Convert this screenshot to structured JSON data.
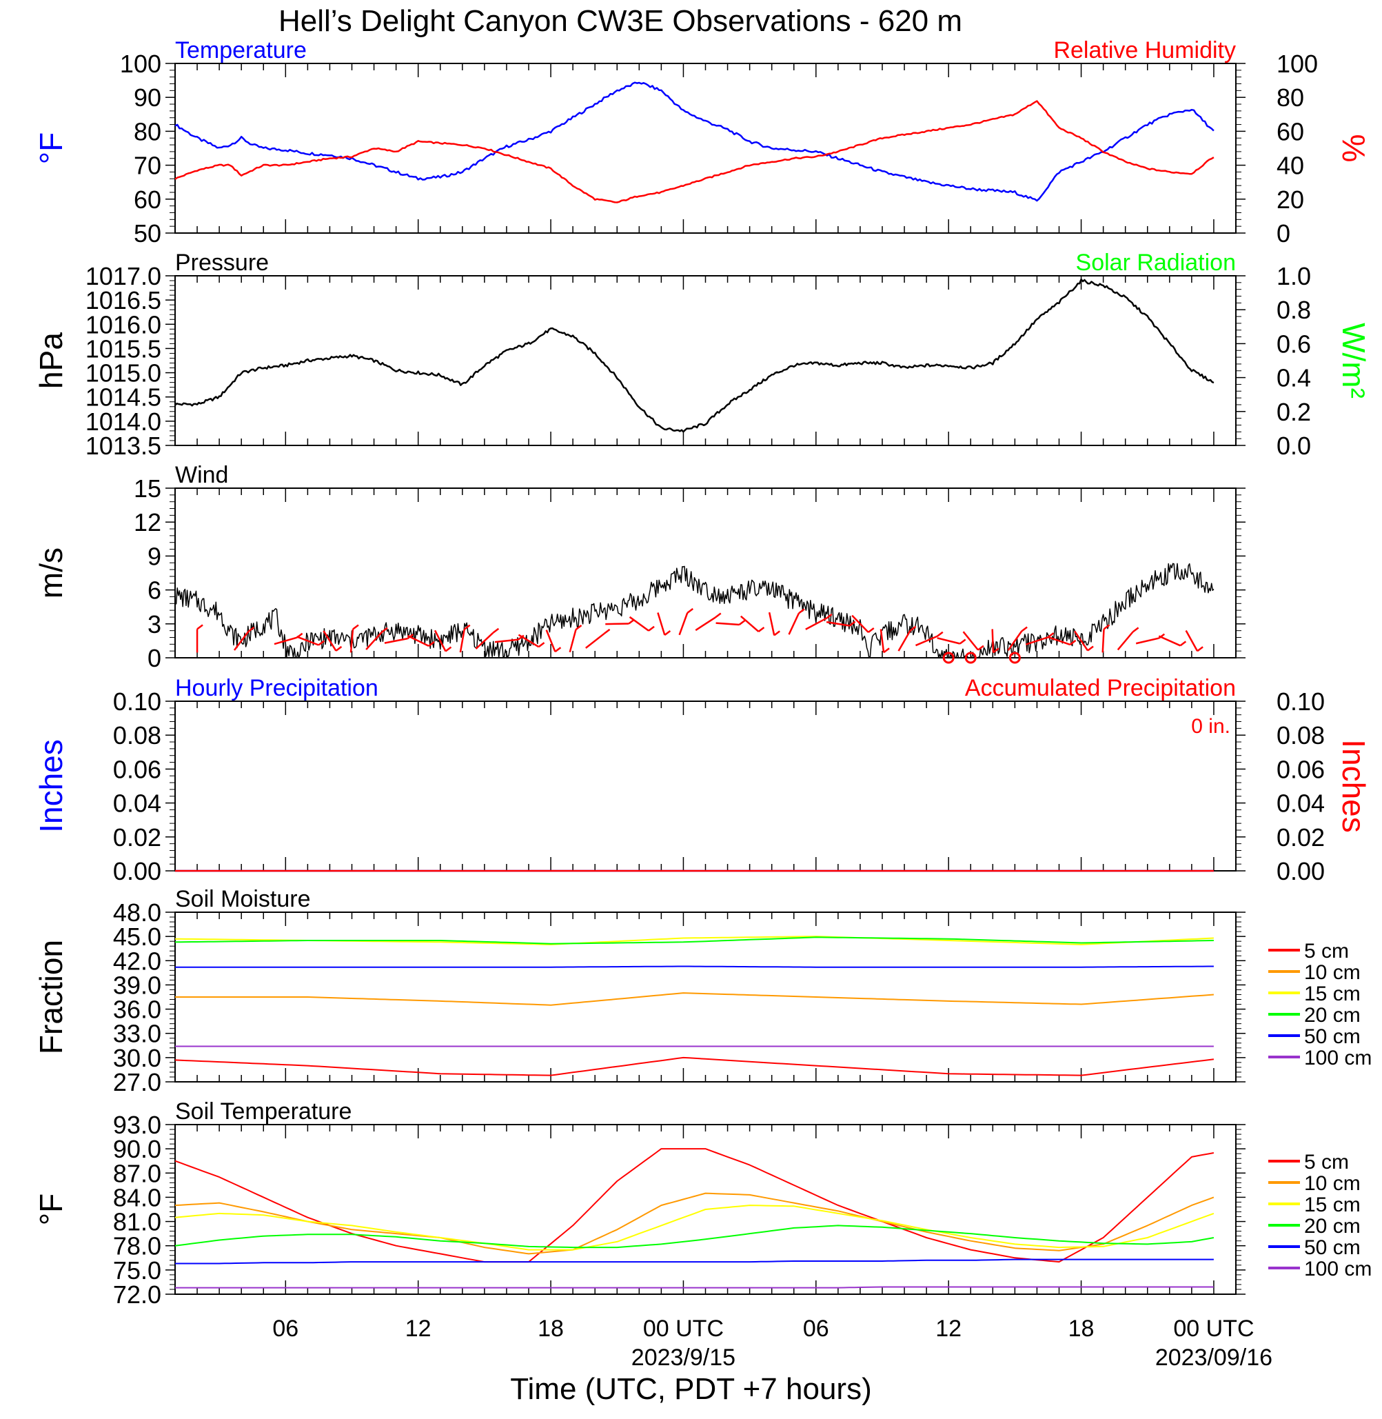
{
  "title": "Hell’s Delight Canyon CW3E Observations - 620 m",
  "xlabel": "Time (UTC, PDT +7 hours)",
  "x_ticks": [
    "06",
    "12",
    "18",
    "00 UTC",
    "06",
    "12",
    "18",
    "00 UTC"
  ],
  "x_dates": [
    "2023/9/15",
    "2023/09/16"
  ],
  "colors": {
    "temperature": "#0000ff",
    "humidity": "#ff0000",
    "pressure": "#000000",
    "solar": "#00ff00",
    "wind": "#000000",
    "barb": "#ff0000"
  },
  "chart_data": [
    {
      "type": "line",
      "panel": "temperature_humidity",
      "left_title": "Temperature",
      "right_title": "Relative Humidity",
      "ylabel": "°F",
      "y2label": "%",
      "ylim": [
        50,
        100
      ],
      "y2lim": [
        0,
        100
      ],
      "yticks": [
        "50",
        "60",
        "70",
        "80",
        "90",
        "100"
      ],
      "y2ticks": [
        "0",
        "20",
        "40",
        "60",
        "80",
        "100"
      ],
      "x_hours": [
        1,
        2,
        3,
        3.5,
        4,
        4.5,
        5,
        6,
        7,
        8,
        9,
        10,
        11,
        12,
        13,
        14,
        15,
        16,
        17,
        18,
        19,
        20,
        21,
        22,
        23,
        24,
        25,
        26,
        27,
        28,
        29,
        30,
        31,
        32,
        33,
        34,
        35,
        36,
        37,
        38,
        39,
        40,
        41,
        42,
        43,
        44,
        45,
        46,
        47,
        48
      ],
      "series": [
        {
          "name": "Temperature",
          "axis": "left",
          "color": "#0000ff",
          "values": [
            82,
            78,
            75,
            76,
            78,
            76,
            75,
            74.5,
            73.5,
            73,
            72,
            70,
            68,
            66,
            66.5,
            68,
            72,
            75.5,
            77.5,
            80,
            84,
            88,
            92,
            94.5,
            92,
            86,
            83,
            80.5,
            77,
            75,
            74.5,
            74,
            72,
            70,
            68,
            66.5,
            65,
            64,
            63,
            62.5,
            62,
            59.5,
            68,
            71,
            74,
            78,
            82,
            85,
            86.5,
            80
          ]
        },
        {
          "name": "Relative Humidity",
          "axis": "right",
          "color": "#ff0000",
          "values": [
            32,
            37,
            40,
            40,
            34,
            37,
            40,
            40,
            42,
            44,
            45,
            50,
            48,
            54,
            53,
            52,
            50,
            46,
            42,
            38,
            28,
            20,
            18,
            22,
            24,
            28,
            32,
            36,
            40,
            42,
            44,
            45,
            48,
            52,
            56,
            58,
            60,
            62,
            64,
            67,
            70,
            78,
            62,
            56,
            48,
            42,
            38,
            36,
            35,
            45
          ]
        }
      ]
    },
    {
      "type": "line",
      "panel": "pressure_solar",
      "left_title": "Pressure",
      "right_title": "Solar Radiation",
      "ylabel": "hPa",
      "y2label": "W/m²",
      "ylim": [
        1013.5,
        1017.0
      ],
      "y2lim": [
        0.0,
        1.0
      ],
      "yticks": [
        "1013.5",
        "1014.0",
        "1014.5",
        "1015.0",
        "1015.5",
        "1016.0",
        "1016.5",
        "1017.0"
      ],
      "y2ticks": [
        "0.0",
        "0.2",
        "0.4",
        "0.6",
        "0.8",
        "1.0"
      ],
      "x_hours": [
        1,
        2,
        3,
        4,
        5,
        6,
        7,
        8,
        9,
        10,
        11,
        12,
        13,
        14,
        15,
        16,
        17,
        18,
        19,
        20,
        21,
        22,
        23,
        24,
        25,
        26,
        27,
        28,
        29,
        30,
        31,
        32,
        33,
        34,
        35,
        36,
        37,
        38,
        39,
        40,
        41,
        42,
        43,
        44,
        45,
        46,
        47,
        48
      ],
      "series": [
        {
          "name": "Pressure",
          "axis": "left",
          "color": "#000000",
          "values": [
            1014.35,
            1014.35,
            1014.5,
            1015.0,
            1015.1,
            1015.15,
            1015.25,
            1015.3,
            1015.35,
            1015.25,
            1015.05,
            1015.0,
            1014.95,
            1014.75,
            1015.15,
            1015.45,
            1015.6,
            1015.9,
            1015.75,
            1015.4,
            1014.9,
            1014.3,
            1013.85,
            1013.8,
            1013.95,
            1014.35,
            1014.65,
            1014.95,
            1015.15,
            1015.2,
            1015.15,
            1015.2,
            1015.2,
            1015.1,
            1015.15,
            1015.15,
            1015.1,
            1015.2,
            1015.6,
            1016.1,
            1016.45,
            1016.9,
            1016.8,
            1016.55,
            1016.15,
            1015.6,
            1015.05,
            1014.8
          ]
        }
      ]
    },
    {
      "type": "line",
      "panel": "wind",
      "left_title": "Wind",
      "ylabel": "m/s",
      "ylim": [
        0,
        15
      ],
      "yticks": [
        "0",
        "3",
        "6",
        "9",
        "12",
        "15"
      ],
      "x_hours": [
        1,
        2,
        3,
        3.6,
        4,
        5,
        5.6,
        6,
        6.6,
        7,
        8,
        9,
        10,
        11,
        12,
        13,
        14,
        15,
        16,
        17,
        18,
        19,
        20,
        21,
        22,
        23,
        24,
        25,
        26,
        27,
        28,
        29,
        30,
        31,
        32,
        32.3,
        33,
        34,
        35,
        35.5,
        36,
        37,
        38,
        39,
        40,
        41,
        42,
        43,
        44,
        45,
        46,
        47,
        48
      ],
      "series": [
        {
          "name": "Wind Speed",
          "axis": "left",
          "color": "#000000",
          "values": [
            5.5,
            5.0,
            4.0,
            2.0,
            1.5,
            3.0,
            3.5,
            1.0,
            0.0,
            1.5,
            1.8,
            1.5,
            2.0,
            2.5,
            2.0,
            1.5,
            2.5,
            1.0,
            0.5,
            1.5,
            3.0,
            3.5,
            4.0,
            4.5,
            5.0,
            6.5,
            7.5,
            6.0,
            5.5,
            6.0,
            6.0,
            5.0,
            4.0,
            3.5,
            2.5,
            0.5,
            2.0,
            3.0,
            2.5,
            0.0,
            0.0,
            0.0,
            1.0,
            1.0,
            1.5,
            2.0,
            1.5,
            3.0,
            5.0,
            6.5,
            7.5,
            7.5,
            6.0
          ]
        }
      ]
    },
    {
      "type": "line",
      "panel": "precipitation",
      "left_title": "Hourly Precipitation",
      "right_title": "Accumulated Precipitation",
      "annotation": "0 in.",
      "ylabel": "Inches",
      "y2label": "Inches",
      "ylim": [
        0.0,
        0.1
      ],
      "y2lim": [
        0.0,
        0.1
      ],
      "yticks": [
        "0.00",
        "0.02",
        "0.04",
        "0.06",
        "0.08",
        "0.10"
      ],
      "y2ticks": [
        "0.00",
        "0.02",
        "0.04",
        "0.06",
        "0.08",
        "0.10"
      ],
      "x_hours": [
        1,
        48
      ],
      "series": [
        {
          "name": "Hourly Precipitation",
          "axis": "left",
          "color": "#0000ff",
          "values": [
            0,
            0
          ]
        },
        {
          "name": "Accumulated Precipitation",
          "axis": "right",
          "color": "#ff0000",
          "values": [
            0,
            0
          ]
        }
      ]
    },
    {
      "type": "line",
      "panel": "soil_moisture",
      "left_title": "Soil Moisture",
      "ylabel": "Fraction",
      "ylim": [
        27.0,
        48.0
      ],
      "yticks": [
        "27.0",
        "30.0",
        "33.0",
        "36.0",
        "39.0",
        "42.0",
        "45.0",
        "48.0"
      ],
      "x_hours": [
        1,
        7,
        13,
        18,
        24,
        30,
        36,
        42,
        48
      ],
      "series": [
        {
          "name": "5 cm",
          "color": "#ff0000",
          "values": [
            29.7,
            29.0,
            28.0,
            27.8,
            30.0,
            29.0,
            28.0,
            27.8,
            29.8
          ]
        },
        {
          "name": "10 cm",
          "color": "#ff9900",
          "values": [
            37.5,
            37.5,
            37.0,
            36.5,
            38.0,
            37.5,
            37.0,
            36.6,
            37.8
          ]
        },
        {
          "name": "15 cm",
          "color": "#ffff00",
          "values": [
            44.7,
            44.5,
            44.3,
            44.0,
            44.8,
            45.0,
            44.5,
            44.0,
            44.8
          ]
        },
        {
          "name": "20 cm",
          "color": "#00ff00",
          "values": [
            44.3,
            44.5,
            44.5,
            44.1,
            44.3,
            44.9,
            44.7,
            44.2,
            44.5
          ]
        },
        {
          "name": "50 cm",
          "color": "#0000ff",
          "values": [
            41.2,
            41.2,
            41.2,
            41.2,
            41.3,
            41.2,
            41.2,
            41.2,
            41.3
          ]
        },
        {
          "name": "100 cm",
          "color": "#9933cc",
          "values": [
            31.4,
            31.4,
            31.4,
            31.4,
            31.4,
            31.4,
            31.4,
            31.4,
            31.4
          ]
        }
      ]
    },
    {
      "type": "line",
      "panel": "soil_temperature",
      "left_title": "Soil Temperature",
      "ylabel": "°F",
      "ylim": [
        72.0,
        93.0
      ],
      "yticks": [
        "72.0",
        "75.0",
        "78.0",
        "81.0",
        "84.0",
        "87.0",
        "90.0",
        "93.0"
      ],
      "x_hours": [
        1,
        3,
        5,
        7,
        9,
        11,
        13,
        15,
        17,
        19,
        21,
        23,
        25,
        27,
        29,
        31,
        33,
        35,
        37,
        39,
        41,
        43,
        45,
        47,
        48
      ],
      "series": [
        {
          "name": "5 cm",
          "color": "#ff0000",
          "values": [
            88.5,
            86.5,
            84.0,
            81.5,
            79.5,
            78.0,
            77.0,
            76.0,
            76.0,
            80.5,
            86.0,
            90.0,
            90.0,
            88.0,
            85.5,
            83.0,
            81.0,
            79.0,
            77.5,
            76.5,
            76.0,
            79.0,
            84.0,
            89.0,
            89.5
          ]
        },
        {
          "name": "10 cm",
          "color": "#ff9900",
          "values": [
            83.0,
            83.3,
            82.2,
            81.0,
            80.0,
            79.5,
            79.0,
            77.8,
            77.0,
            77.5,
            80.0,
            83.0,
            84.5,
            84.3,
            83.3,
            82.3,
            81.0,
            79.7,
            78.6,
            77.7,
            77.4,
            78.2,
            80.5,
            83.0,
            84.0
          ]
        },
        {
          "name": "15 cm",
          "color": "#ffff00",
          "values": [
            81.5,
            82.0,
            81.8,
            81.0,
            80.5,
            79.7,
            79.0,
            78.3,
            77.5,
            77.5,
            78.5,
            80.5,
            82.5,
            83.0,
            82.9,
            82.0,
            81.1,
            80.0,
            79.0,
            78.2,
            77.8,
            77.9,
            79.0,
            81.0,
            82.0
          ]
        },
        {
          "name": "20 cm",
          "color": "#00ff00",
          "values": [
            78.0,
            78.7,
            79.2,
            79.4,
            79.4,
            79.1,
            78.6,
            78.3,
            77.9,
            77.8,
            77.8,
            78.2,
            78.8,
            79.5,
            80.2,
            80.5,
            80.3,
            79.9,
            79.5,
            79.0,
            78.6,
            78.3,
            78.2,
            78.5,
            79.0
          ]
        },
        {
          "name": "50 cm",
          "color": "#0000ff",
          "values": [
            75.8,
            75.8,
            75.9,
            75.9,
            76.0,
            76.0,
            76.0,
            76.0,
            76.0,
            76.0,
            76.0,
            76.0,
            76.0,
            76.0,
            76.1,
            76.1,
            76.1,
            76.2,
            76.2,
            76.3,
            76.3,
            76.3,
            76.3,
            76.3,
            76.3
          ]
        },
        {
          "name": "100 cm",
          "color": "#9933cc",
          "values": [
            72.8,
            72.8,
            72.8,
            72.8,
            72.8,
            72.8,
            72.8,
            72.8,
            72.8,
            72.8,
            72.8,
            72.8,
            72.8,
            72.8,
            72.8,
            72.8,
            72.9,
            72.9,
            72.9,
            72.9,
            72.9,
            72.9,
            72.9,
            72.9,
            72.9
          ]
        }
      ]
    }
  ]
}
